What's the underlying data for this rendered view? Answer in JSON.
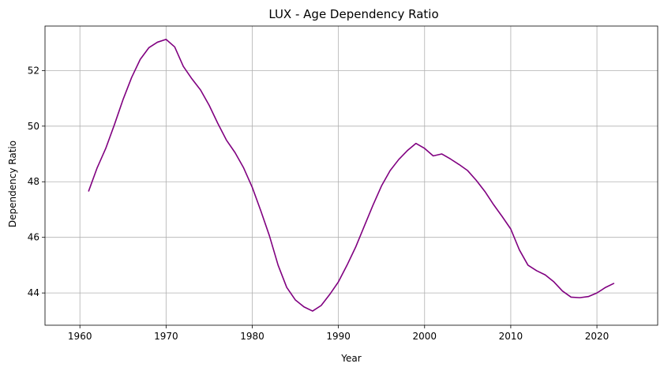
{
  "chart_data": {
    "type": "line",
    "title": "LUX - Age Dependency Ratio",
    "xlabel": "Year",
    "ylabel": "Dependency Ratio",
    "xlim": [
      1955.95,
      2027.05
    ],
    "ylim": [
      42.84,
      53.6
    ],
    "xticks": [
      1960,
      1970,
      1980,
      1990,
      2000,
      2010,
      2020
    ],
    "yticks": [
      44,
      46,
      48,
      50,
      52
    ],
    "grid": true,
    "line_color": "#800080",
    "series": [
      {
        "x": [
          1961,
          1962,
          1963,
          1964,
          1965,
          1966,
          1967,
          1968,
          1969,
          1970,
          1971,
          1972,
          1973,
          1974,
          1975,
          1976,
          1977,
          1978,
          1979,
          1980,
          1981,
          1982,
          1983,
          1984,
          1985,
          1986,
          1987,
          1988,
          1989,
          1990,
          1991,
          1992,
          1993,
          1994,
          1995,
          1996,
          1997,
          1998,
          1999,
          2000,
          2001,
          2002,
          2003,
          2004,
          2005,
          2006,
          2007,
          2008,
          2009,
          2010,
          2011,
          2012,
          2013,
          2014,
          2015,
          2016,
          2017,
          2018,
          2019,
          2020,
          2021,
          2022
        ],
        "values": [
          47.65,
          48.5,
          49.2,
          50.05,
          50.95,
          51.75,
          52.4,
          52.82,
          53.02,
          53.12,
          52.85,
          52.15,
          51.7,
          51.3,
          50.75,
          50.1,
          49.5,
          49.05,
          48.5,
          47.8,
          46.95,
          46.05,
          45.0,
          44.2,
          43.75,
          43.5,
          43.35,
          43.55,
          43.95,
          44.4,
          45.0,
          45.65,
          46.4,
          47.15,
          47.85,
          48.4,
          48.8,
          49.12,
          49.38,
          49.2,
          48.93,
          49.0,
          48.82,
          48.62,
          48.4,
          48.05,
          47.65,
          47.18,
          46.75,
          46.3,
          45.55,
          45.0,
          44.8,
          44.65,
          44.4,
          44.07,
          43.85,
          43.83,
          43.87,
          44.0,
          44.2,
          44.35
        ]
      }
    ]
  }
}
